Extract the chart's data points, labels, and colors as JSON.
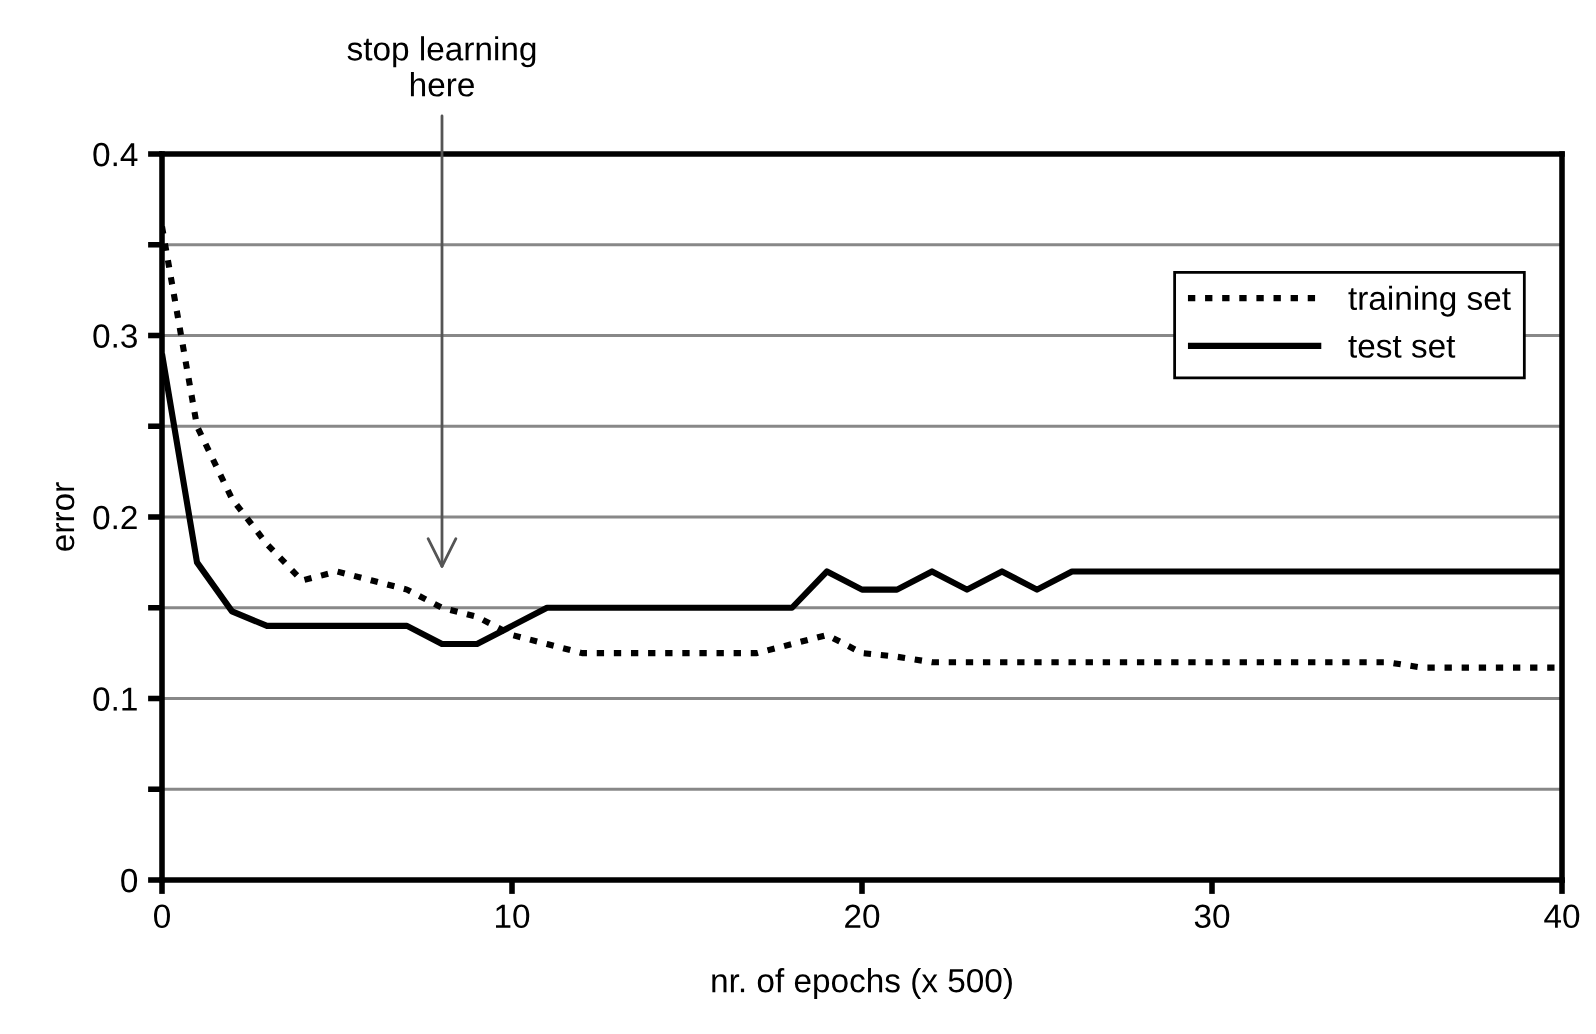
{
  "chart_data": {
    "type": "line",
    "xlabel": "nr. of epochs (x 500)",
    "ylabel": "error",
    "xlim": [
      0,
      40
    ],
    "ylim": [
      0,
      0.4
    ],
    "xticks": [
      0,
      10,
      20,
      30,
      40
    ],
    "yticks": [
      0,
      {
        "value": 0.05,
        "label": null
      },
      0.1,
      {
        "value": 0.15,
        "label": null
      },
      0.2,
      {
        "value": 0.25,
        "label": null
      },
      0.3,
      {
        "value": 0.35,
        "label": null
      },
      0.4
    ],
    "grid": "y",
    "legend": "top right",
    "marker": "none",
    "x": [
      0,
      1,
      2,
      3,
      4,
      5,
      6,
      7,
      8,
      9,
      10,
      11,
      12,
      13,
      14,
      15,
      16,
      17,
      18,
      19,
      20,
      21,
      22,
      23,
      24,
      25,
      26,
      27,
      28,
      29,
      30,
      31,
      32,
      33,
      34,
      35,
      36,
      37,
      38,
      39,
      40
    ],
    "series": [
      {
        "name": "training set",
        "color": "#000000",
        "line_style": "dotted",
        "values": [
          0.36,
          0.25,
          0.21,
          0.185,
          0.165,
          0.17,
          0.165,
          0.16,
          0.15,
          0.145,
          0.135,
          0.13,
          0.125,
          0.125,
          0.125,
          0.125,
          0.125,
          0.125,
          0.13,
          0.135,
          0.125,
          0.123,
          0.12,
          0.12,
          0.12,
          0.12,
          0.12,
          0.12,
          0.12,
          0.12,
          0.12,
          0.12,
          0.12,
          0.12,
          0.12,
          0.12,
          0.117,
          0.117,
          0.117,
          0.117,
          0.117
        ]
      },
      {
        "name": "test set",
        "color": "#000000",
        "line_style": "solid",
        "values": [
          0.29,
          0.175,
          0.148,
          0.14,
          0.14,
          0.14,
          0.14,
          0.14,
          0.13,
          0.13,
          0.14,
          0.15,
          0.15,
          0.15,
          0.15,
          0.15,
          0.15,
          0.15,
          0.15,
          0.17,
          0.16,
          0.16,
          0.17,
          0.16,
          0.17,
          0.16,
          0.17,
          0.17,
          0.17,
          0.17,
          0.17,
          0.17,
          0.17,
          0.17,
          0.17,
          0.17,
          0.17,
          0.17,
          0.17,
          0.17,
          0.17
        ]
      }
    ],
    "annotations": [
      "stop learning\nhere"
    ]
  }
}
